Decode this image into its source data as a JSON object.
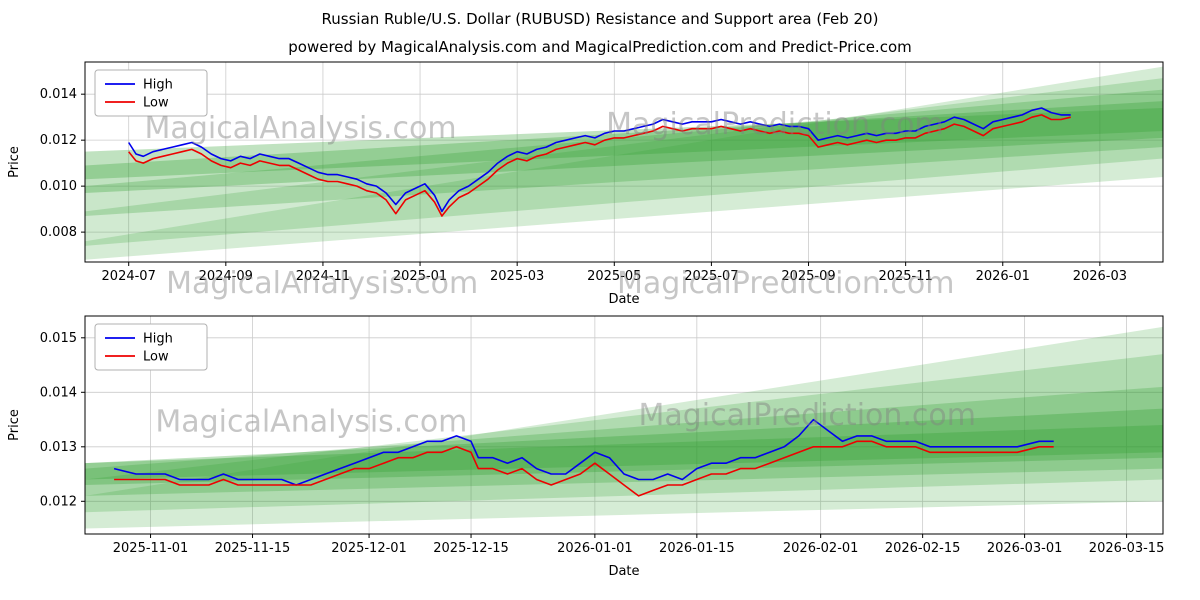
{
  "figure": {
    "title": "Russian Ruble/U.S. Dollar (RUBUSD) Resistance and Support area (Feb 20)",
    "subtitle": "powered by MagicalAnalysis.com and MagicalPrediction.com and Predict-Price.com"
  },
  "colors": {
    "high_line": "#0000ee",
    "low_line": "#ee0000",
    "band_green": "#2e9e2e",
    "grid": "#cccccc",
    "watermark": "#808080"
  },
  "chart_data": [
    {
      "type": "line",
      "title": "",
      "xlabel": "Date",
      "ylabel": "Price",
      "xlim": [
        -0.9,
        21.3
      ],
      "ylim": [
        0.0067,
        0.0154
      ],
      "grid": true,
      "legend_position": "top-left",
      "band_color": "#2e9e2e",
      "x_tick_values": [
        0,
        2,
        4,
        6,
        8,
        10,
        12,
        14,
        16,
        18,
        20
      ],
      "x_tick_labels": [
        "2024-07",
        "2024-09",
        "2024-11",
        "2025-01",
        "2025-03",
        "2025-05",
        "2025-07",
        "2025-09",
        "2025-11",
        "2026-01",
        "2026-03"
      ],
      "y_tick_values": [
        0.008,
        0.01,
        0.012,
        0.014
      ],
      "y_tick_labels": [
        "0.008",
        "0.010",
        "0.012",
        "0.014"
      ],
      "bands": [
        [
          0.0068,
          0.0076,
          0.0104,
          0.0152,
          0.2
        ],
        [
          0.0074,
          0.0089,
          0.0112,
          0.0147,
          0.22
        ],
        [
          0.0087,
          0.01,
          0.0117,
          0.0142,
          0.26
        ],
        [
          0.0097,
          0.0109,
          0.0121,
          0.0137,
          0.3
        ],
        [
          0.0103,
          0.0115,
          0.0124,
          0.0134,
          0.3
        ]
      ],
      "series": [
        {
          "name": "High",
          "color": "#0000ee",
          "x": [
            0,
            0.15,
            0.3,
            0.5,
            0.7,
            0.9,
            1.1,
            1.3,
            1.5,
            1.7,
            1.9,
            2.1,
            2.3,
            2.5,
            2.7,
            2.9,
            3.1,
            3.3,
            3.5,
            3.7,
            3.9,
            4.1,
            4.3,
            4.5,
            4.7,
            4.9,
            5.1,
            5.3,
            5.5,
            5.7,
            5.9,
            6.1,
            6.3,
            6.45,
            6.6,
            6.8,
            7,
            7.2,
            7.4,
            7.6,
            7.8,
            8,
            8.2,
            8.4,
            8.6,
            8.8,
            9,
            9.2,
            9.4,
            9.6,
            9.8,
            10,
            10.2,
            10.4,
            10.6,
            10.8,
            11,
            11.2,
            11.4,
            11.6,
            11.8,
            12,
            12.2,
            12.4,
            12.6,
            12.8,
            13,
            13.2,
            13.4,
            13.6,
            13.8,
            14,
            14.2,
            14.4,
            14.6,
            14.8,
            15,
            15.2,
            15.4,
            15.6,
            15.8,
            16,
            16.2,
            16.4,
            16.6,
            16.8,
            17,
            17.2,
            17.4,
            17.6,
            17.8,
            18,
            18.2,
            18.4,
            18.6,
            18.8,
            19,
            19.2,
            19.4
          ],
          "y": [
            0.0119,
            0.0114,
            0.0113,
            0.0115,
            0.0116,
            0.0117,
            0.0118,
            0.0119,
            0.0117,
            0.0114,
            0.0112,
            0.0111,
            0.0113,
            0.0112,
            0.0114,
            0.0113,
            0.0112,
            0.0112,
            0.011,
            0.0108,
            0.0106,
            0.0105,
            0.0105,
            0.0104,
            0.0103,
            0.0101,
            0.01,
            0.0097,
            0.0092,
            0.0097,
            0.0099,
            0.0101,
            0.0096,
            0.0089,
            0.0094,
            0.0098,
            0.01,
            0.0103,
            0.0106,
            0.011,
            0.0113,
            0.0115,
            0.0114,
            0.0116,
            0.0117,
            0.0119,
            0.012,
            0.0121,
            0.0122,
            0.0121,
            0.0123,
            0.0124,
            0.0124,
            0.0125,
            0.0126,
            0.0127,
            0.0129,
            0.0128,
            0.0127,
            0.0128,
            0.0128,
            0.0128,
            0.0129,
            0.0128,
            0.0127,
            0.0128,
            0.0127,
            0.0126,
            0.0127,
            0.0126,
            0.0126,
            0.0125,
            0.012,
            0.0121,
            0.0122,
            0.0121,
            0.0122,
            0.0123,
            0.0122,
            0.0123,
            0.0123,
            0.0124,
            0.0124,
            0.0126,
            0.0127,
            0.0128,
            0.013,
            0.0129,
            0.0127,
            0.0125,
            0.0128,
            0.0129,
            0.013,
            0.0131,
            0.0133,
            0.0134,
            0.0132,
            0.0131,
            0.0131
          ]
        },
        {
          "name": "Low",
          "color": "#ee0000",
          "x": [
            0,
            0.15,
            0.3,
            0.5,
            0.7,
            0.9,
            1.1,
            1.3,
            1.5,
            1.7,
            1.9,
            2.1,
            2.3,
            2.5,
            2.7,
            2.9,
            3.1,
            3.3,
            3.5,
            3.7,
            3.9,
            4.1,
            4.3,
            4.5,
            4.7,
            4.9,
            5.1,
            5.3,
            5.5,
            5.7,
            5.9,
            6.1,
            6.3,
            6.45,
            6.6,
            6.8,
            7,
            7.2,
            7.4,
            7.6,
            7.8,
            8,
            8.2,
            8.4,
            8.6,
            8.8,
            9,
            9.2,
            9.4,
            9.6,
            9.8,
            10,
            10.2,
            10.4,
            10.6,
            10.8,
            11,
            11.2,
            11.4,
            11.6,
            11.8,
            12,
            12.2,
            12.4,
            12.6,
            12.8,
            13,
            13.2,
            13.4,
            13.6,
            13.8,
            14,
            14.2,
            14.4,
            14.6,
            14.8,
            15,
            15.2,
            15.4,
            15.6,
            15.8,
            16,
            16.2,
            16.4,
            16.6,
            16.8,
            17,
            17.2,
            17.4,
            17.6,
            17.8,
            18,
            18.2,
            18.4,
            18.6,
            18.8,
            19,
            19.2,
            19.4
          ],
          "y": [
            0.0115,
            0.0111,
            0.011,
            0.0112,
            0.0113,
            0.0114,
            0.0115,
            0.0116,
            0.0114,
            0.0111,
            0.0109,
            0.0108,
            0.011,
            0.0109,
            0.0111,
            0.011,
            0.0109,
            0.0109,
            0.0107,
            0.0105,
            0.0103,
            0.0102,
            0.0102,
            0.0101,
            0.01,
            0.0098,
            0.0097,
            0.0094,
            0.0088,
            0.0094,
            0.0096,
            0.0098,
            0.0093,
            0.0087,
            0.0091,
            0.0095,
            0.0097,
            0.01,
            0.0103,
            0.0107,
            0.011,
            0.0112,
            0.0111,
            0.0113,
            0.0114,
            0.0116,
            0.0117,
            0.0118,
            0.0119,
            0.0118,
            0.012,
            0.0121,
            0.0121,
            0.0122,
            0.0123,
            0.0124,
            0.0126,
            0.0125,
            0.0124,
            0.0125,
            0.0125,
            0.0125,
            0.0126,
            0.0125,
            0.0124,
            0.0125,
            0.0124,
            0.0123,
            0.0124,
            0.0123,
            0.0123,
            0.0122,
            0.0117,
            0.0118,
            0.0119,
            0.0118,
            0.0119,
            0.012,
            0.0119,
            0.012,
            0.012,
            0.0121,
            0.0121,
            0.0123,
            0.0124,
            0.0125,
            0.0127,
            0.0126,
            0.0124,
            0.0122,
            0.0125,
            0.0126,
            0.0127,
            0.0128,
            0.013,
            0.0131,
            0.0129,
            0.0129,
            0.013
          ]
        }
      ],
      "watermarks": [
        {
          "text": "MagicalAnalysis.com",
          "fx": 0.2,
          "fy": 0.38,
          "row": "plot"
        },
        {
          "text": "MagicalPrediction.com",
          "fx": 0.64,
          "fy": 0.36,
          "row": "plot"
        },
        {
          "text": "MagicalAnalysis.com",
          "fx": 0.22,
          "fy": 0,
          "row": "axis"
        },
        {
          "text": "MagicalPrediction.com",
          "fx": 0.65,
          "fy": 0,
          "row": "axis"
        }
      ]
    },
    {
      "type": "line",
      "title": "",
      "xlabel": "Date",
      "ylabel": "Price",
      "xlim": [
        -9,
        139
      ],
      "ylim": [
        0.0114,
        0.0154
      ],
      "grid": true,
      "legend_position": "top-left",
      "band_color": "#2e9e2e",
      "x_tick_values": [
        0,
        14,
        30,
        44,
        61,
        75,
        92,
        106,
        120,
        134
      ],
      "x_tick_labels": [
        "2025-11-01",
        "2025-11-15",
        "2025-12-01",
        "2025-12-15",
        "2026-01-01",
        "2026-01-15",
        "2026-02-01",
        "2026-02-15",
        "2026-03-01",
        "2026-03-15"
      ],
      "y_tick_values": [
        0.012,
        0.013,
        0.014,
        0.015
      ],
      "y_tick_labels": [
        "0.012",
        "0.013",
        "0.014",
        "0.015"
      ],
      "bands": [
        [
          0.0115,
          0.0121,
          0.012,
          0.0152,
          0.2
        ],
        [
          0.0118,
          0.0124,
          0.0124,
          0.0147,
          0.22
        ],
        [
          0.0121,
          0.0126,
          0.0126,
          0.0141,
          0.26
        ],
        [
          0.0123,
          0.0127,
          0.0128,
          0.0137,
          0.3
        ],
        [
          0.0124,
          0.0127,
          0.0129,
          0.0134,
          0.3
        ]
      ],
      "series": [
        {
          "name": "High",
          "color": "#0000ee",
          "x": [
            -5,
            -2,
            2,
            4,
            6,
            8,
            10,
            12,
            14,
            16,
            18,
            20,
            22,
            24,
            26,
            28,
            30,
            32,
            34,
            36,
            38,
            40,
            42,
            44,
            45,
            47,
            49,
            51,
            53,
            55,
            57,
            59,
            61,
            63,
            65,
            67,
            69,
            71,
            73,
            75,
            77,
            79,
            81,
            83,
            85,
            87,
            89,
            91,
            93,
            95,
            97,
            99,
            101,
            103,
            105,
            107,
            109,
            111,
            113,
            116,
            119,
            122,
            124
          ],
          "y": [
            0.0126,
            0.0125,
            0.0125,
            0.0124,
            0.0124,
            0.0124,
            0.0125,
            0.0124,
            0.0124,
            0.0124,
            0.0124,
            0.0123,
            0.0124,
            0.0125,
            0.0126,
            0.0127,
            0.0128,
            0.0129,
            0.0129,
            0.013,
            0.0131,
            0.0131,
            0.0132,
            0.0131,
            0.0128,
            0.0128,
            0.0127,
            0.0128,
            0.0126,
            0.0125,
            0.0125,
            0.0127,
            0.0129,
            0.0128,
            0.0125,
            0.0124,
            0.0124,
            0.0125,
            0.0124,
            0.0126,
            0.0127,
            0.0127,
            0.0128,
            0.0128,
            0.0129,
            0.013,
            0.0132,
            0.0135,
            0.0133,
            0.0131,
            0.0132,
            0.0132,
            0.0131,
            0.0131,
            0.0131,
            0.013,
            0.013,
            0.013,
            0.013,
            0.013,
            0.013,
            0.0131,
            0.0131
          ]
        },
        {
          "name": "Low",
          "color": "#ee0000",
          "x": [
            -5,
            -2,
            2,
            4,
            6,
            8,
            10,
            12,
            14,
            16,
            18,
            20,
            22,
            24,
            26,
            28,
            30,
            32,
            34,
            36,
            38,
            40,
            42,
            44,
            45,
            47,
            49,
            51,
            53,
            55,
            57,
            59,
            61,
            63,
            65,
            67,
            69,
            71,
            73,
            75,
            77,
            79,
            81,
            83,
            85,
            87,
            89,
            91,
            93,
            95,
            97,
            99,
            101,
            103,
            105,
            107,
            109,
            111,
            113,
            116,
            119,
            122,
            124
          ],
          "y": [
            0.0124,
            0.0124,
            0.0124,
            0.0123,
            0.0123,
            0.0123,
            0.0124,
            0.0123,
            0.0123,
            0.0123,
            0.0123,
            0.0123,
            0.0123,
            0.0124,
            0.0125,
            0.0126,
            0.0126,
            0.0127,
            0.0128,
            0.0128,
            0.0129,
            0.0129,
            0.013,
            0.0129,
            0.0126,
            0.0126,
            0.0125,
            0.0126,
            0.0124,
            0.0123,
            0.0124,
            0.0125,
            0.0127,
            0.0125,
            0.0123,
            0.0121,
            0.0122,
            0.0123,
            0.0123,
            0.0124,
            0.0125,
            0.0125,
            0.0126,
            0.0126,
            0.0127,
            0.0128,
            0.0129,
            0.013,
            0.013,
            0.013,
            0.0131,
            0.0131,
            0.013,
            0.013,
            0.013,
            0.0129,
            0.0129,
            0.0129,
            0.0129,
            0.0129,
            0.0129,
            0.013,
            0.013
          ]
        }
      ],
      "watermarks": [
        {
          "text": "MagicalAnalysis.com",
          "fx": 0.21,
          "fy": 0.53,
          "row": "plot"
        },
        {
          "text": "MagicalPrediction.com",
          "fx": 0.67,
          "fy": 0.5,
          "row": "plot"
        }
      ]
    }
  ]
}
